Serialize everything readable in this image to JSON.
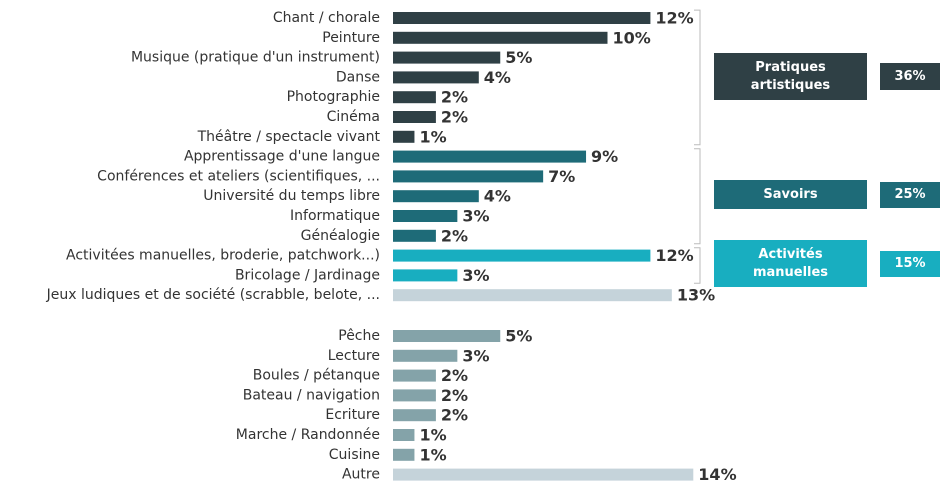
{
  "chart_data": [
    {
      "type": "bar",
      "categories": [
        "Chant / chorale",
        "Peinture",
        "Musique (pratique d'un instrument)",
        "Danse",
        "Photographie",
        "Cinéma",
        "Théâtre / spectacle vivant",
        "Apprentissage d'une langue",
        "Conférences et ateliers (scientifiques, ...",
        "Université du temps libre",
        "Informatique",
        "Généalogie",
        "Activitées manuelles, broderie, patchwork...)",
        "Bricolage / Jardinage",
        "Jeux ludiques et de société (scrabble, belote, ..."
      ],
      "values": [
        12,
        10,
        5,
        4,
        2,
        2,
        1,
        9,
        7,
        4,
        3,
        2,
        12,
        3,
        13
      ],
      "value_labels": [
        "12%",
        "10%",
        "5%",
        "4%",
        "2%",
        "2%",
        "1%",
        "9%",
        "7%",
        "4%",
        "3%",
        "2%",
        "12%",
        "3%",
        "13%"
      ],
      "colors": [
        "#2f4045",
        "#2f4045",
        "#2f4045",
        "#2f4045",
        "#2f4045",
        "#2f4045",
        "#2f4045",
        "#1e6b78",
        "#1e6b78",
        "#1e6b78",
        "#1e6b78",
        "#1e6b78",
        "#18aec0",
        "#18aec0",
        "#c5d3da"
      ],
      "groups": [
        {
          "label": "Pratiques artistiques",
          "value": 36,
          "value_label": "36%",
          "color": "#2f4045"
        },
        {
          "label": "Savoirs",
          "value": 25,
          "value_label": "25%",
          "color": "#1e6b78"
        },
        {
          "label": "Activités manuelles",
          "value": 15,
          "value_label": "15%",
          "color": "#18aec0"
        }
      ]
    },
    {
      "type": "bar",
      "categories": [
        "Pêche",
        "Lecture",
        "Boules / pétanque",
        "Bateau / navigation",
        "Ecriture",
        "Marche / Randonnée",
        "Cuisine",
        "Autre"
      ],
      "values": [
        5,
        3,
        2,
        2,
        2,
        1,
        1,
        14
      ],
      "value_labels": [
        "5%",
        "3%",
        "2%",
        "2%",
        "2%",
        "1%",
        "1%",
        "14%"
      ],
      "colors": [
        "#84a3a9",
        "#84a3a9",
        "#84a3a9",
        "#84a3a9",
        "#84a3a9",
        "#84a3a9",
        "#84a3a9",
        "#c5d3da"
      ]
    }
  ]
}
